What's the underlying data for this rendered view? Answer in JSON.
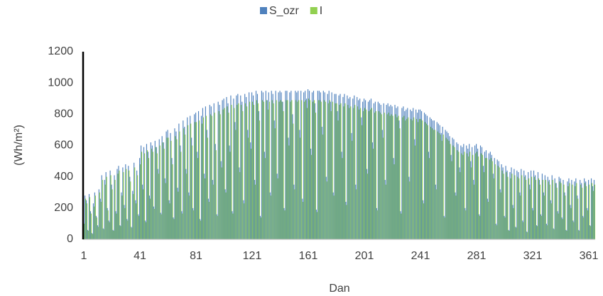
{
  "chart_data": {
    "type": "bar",
    "x_label": "Dan",
    "y_label": "(Wh/m²)",
    "ylim": [
      0,
      1200
    ],
    "yticks": [
      0,
      200,
      400,
      600,
      800,
      1000,
      1200
    ],
    "grid": false,
    "legend": "top",
    "categories": [
      1,
      null,
      null,
      null,
      null,
      null,
      null,
      null,
      null,
      null,
      null,
      null,
      null,
      null,
      null,
      null,
      null,
      null,
      null,
      null,
      null,
      null,
      null,
      null,
      null,
      null,
      null,
      null,
      null,
      null,
      null,
      null,
      null,
      null,
      null,
      null,
      null,
      null,
      null,
      null,
      41,
      null,
      null,
      null,
      null,
      null,
      null,
      null,
      null,
      null,
      null,
      null,
      null,
      null,
      null,
      null,
      null,
      null,
      null,
      null,
      null,
      null,
      null,
      null,
      null,
      null,
      null,
      null,
      null,
      null,
      null,
      null,
      null,
      null,
      null,
      null,
      null,
      null,
      null,
      null,
      81,
      null,
      null,
      null,
      null,
      null,
      null,
      null,
      null,
      null,
      null,
      null,
      null,
      null,
      null,
      null,
      null,
      null,
      null,
      null,
      null,
      null,
      null,
      null,
      null,
      null,
      null,
      null,
      null,
      null,
      null,
      null,
      null,
      null,
      null,
      null,
      null,
      null,
      null,
      null,
      121,
      null,
      null,
      null,
      null,
      null,
      null,
      null,
      null,
      null,
      null,
      null,
      null,
      null,
      null,
      null,
      null,
      null,
      null,
      null,
      null,
      null,
      null,
      null,
      null,
      null,
      null,
      null,
      null,
      null,
      null,
      null,
      null,
      null,
      null,
      null,
      null,
      null,
      null,
      null,
      161,
      null,
      null,
      null,
      null,
      null,
      null,
      null,
      null,
      null,
      null,
      null,
      null,
      null,
      null,
      null,
      null,
      null,
      null,
      null,
      null,
      null,
      null,
      null,
      null,
      null,
      null,
      null,
      null,
      null,
      null,
      null,
      null,
      null,
      null,
      null,
      null,
      null,
      null,
      null,
      201,
      null,
      null,
      null,
      null,
      null,
      null,
      null,
      null,
      null,
      null,
      null,
      null,
      null,
      null,
      null,
      null,
      null,
      null,
      null,
      null,
      null,
      null,
      null,
      null,
      null,
      null,
      null,
      null,
      null,
      null,
      null,
      null,
      null,
      null,
      null,
      null,
      null,
      null,
      null,
      241,
      null,
      null,
      null,
      null,
      null,
      null,
      null,
      null,
      null,
      null,
      null,
      null,
      null,
      null,
      null,
      null,
      null,
      null,
      null,
      null,
      null,
      null,
      null,
      null,
      null,
      null,
      null,
      null,
      null,
      null,
      null,
      null,
      null,
      null,
      null,
      null,
      null,
      null,
      null,
      281,
      null,
      null,
      null,
      null,
      null,
      null,
      null,
      null,
      null,
      null,
      null,
      null,
      null,
      null,
      null,
      null,
      null,
      null,
      null,
      null,
      null,
      null,
      null,
      null,
      null,
      null,
      null,
      null,
      null,
      null,
      null,
      null,
      null,
      null,
      null,
      null,
      null,
      null,
      null,
      321,
      null,
      null,
      null,
      null,
      null,
      null,
      null,
      null,
      null,
      null,
      null,
      null,
      null,
      null,
      null,
      null,
      null,
      null,
      null,
      null,
      null,
      null,
      null,
      null,
      null,
      null,
      null,
      null,
      null,
      null,
      null,
      null,
      null,
      null,
      null,
      null,
      null,
      null,
      null,
      361,
      null,
      null,
      null,
      null
    ],
    "series": [
      {
        "name": "S_ozr",
        "color": "#4f81bd",
        "values": [
          110,
          280,
          250,
          60,
          290,
          180,
          40,
          230,
          300,
          150,
          90,
          320,
          260,
          410,
          70,
          380,
          430,
          200,
          120,
          440,
          350,
          60,
          410,
          180,
          450,
          470,
          90,
          300,
          460,
          220,
          480,
          130,
          470,
          400,
          80,
          310,
          490,
          250,
          440,
          160,
          520,
          600,
          350,
          590,
          120,
          610,
          560,
          280,
          620,
          600,
          210,
          630,
          590,
          450,
          640,
          170,
          660,
          620,
          390,
          690,
          700,
          250,
          680,
          520,
          140,
          710,
          690,
          330,
          740,
          600,
          180,
          760,
          720,
          450,
          780,
          300,
          790,
          650,
          200,
          800,
          810,
          560,
          820,
          130,
          790,
          840,
          420,
          850,
          700,
          260,
          860,
          850,
          380,
          870,
          610,
          160,
          880,
          860,
          500,
          890,
          900,
          320,
          910,
          870,
          600,
          920,
          180,
          900,
          750,
          920,
          930,
          460,
          920,
          880,
          250,
          930,
          910,
          700,
          940,
          620,
          940,
          920,
          380,
          950,
          930,
          820,
          150,
          950,
          940,
          560,
          950,
          890,
          940,
          300,
          950,
          930,
          760,
          950,
          420,
          940,
          950,
          940,
          880,
          200,
          950,
          950,
          650,
          940,
          950,
          800,
          350,
          950,
          940,
          950,
          700,
          950,
          260,
          940,
          950,
          900,
          960,
          950,
          580,
          940,
          950,
          870,
          190,
          950,
          950,
          940,
          720,
          950,
          940,
          400,
          930,
          950,
          880,
          940,
          300,
          930,
          930,
          820,
          920,
          930,
          560,
          910,
          930,
          240,
          920,
          900,
          910,
          680,
          900,
          920,
          350,
          910,
          890,
          900,
          780,
          880,
          900,
          890,
          450,
          880,
          890,
          900,
          620,
          870,
          880,
          200,
          880,
          870,
          860,
          700,
          870,
          380,
          860,
          870,
          850,
          860,
          850,
          520,
          860,
          840,
          850,
          760,
          180,
          840,
          850,
          820,
          830,
          840,
          400,
          830,
          820,
          840,
          640,
          830,
          810,
          830,
          830,
          820,
          250,
          810,
          800,
          790,
          560,
          780,
          770,
          760,
          760,
          350,
          750,
          740,
          730,
          680,
          720,
          150,
          700,
          690,
          680,
          660,
          540,
          650,
          640,
          300,
          620,
          610,
          460,
          600,
          590,
          610,
          200,
          600,
          580,
          610,
          500,
          590,
          380,
          600,
          610,
          580,
          160,
          600,
          590,
          470,
          560,
          570,
          260,
          550,
          560,
          540,
          420,
          520,
          100,
          510,
          500,
          320,
          480,
          460,
          150,
          470,
          440,
          60,
          430,
          460,
          220,
          450,
          80,
          440,
          430,
          300,
          450,
          120,
          440,
          410,
          50,
          430,
          350,
          440,
          200,
          440,
          410,
          90,
          430,
          380,
          160,
          420,
          300,
          410,
          100,
          400,
          380,
          250,
          410,
          70,
          390,
          360,
          180,
          400,
          390,
          140,
          380,
          300,
          60,
          370,
          390,
          220,
          380,
          120,
          370,
          390,
          280,
          60,
          380,
          360,
          150,
          390,
          370,
          200,
          380,
          90,
          390,
          340,
          380
        ]
      },
      {
        "name": "I",
        "color": "#92d050",
        "values": [
          100,
          260,
          230,
          55,
          270,
          165,
          35,
          210,
          280,
          140,
          80,
          300,
          240,
          380,
          65,
          350,
          400,
          185,
          110,
          410,
          320,
          55,
          380,
          165,
          420,
          440,
          85,
          280,
          430,
          200,
          450,
          120,
          440,
          370,
          75,
          290,
          460,
          230,
          410,
          150,
          480,
          560,
          320,
          550,
          110,
          570,
          520,
          260,
          580,
          560,
          195,
          590,
          550,
          420,
          600,
          160,
          620,
          580,
          360,
          650,
          650,
          230,
          630,
          480,
          130,
          660,
          640,
          305,
          690,
          560,
          165,
          710,
          670,
          420,
          730,
          280,
          740,
          600,
          185,
          750,
          750,
          520,
          760,
          120,
          740,
          780,
          390,
          790,
          650,
          240,
          800,
          790,
          350,
          810,
          570,
          150,
          820,
          800,
          460,
          830,
          840,
          300,
          850,
          810,
          560,
          860,
          165,
          840,
          700,
          860,
          870,
          430,
          860,
          820,
          230,
          870,
          850,
          650,
          880,
          580,
          880,
          860,
          350,
          890,
          870,
          760,
          140,
          890,
          880,
          520,
          890,
          830,
          880,
          280,
          890,
          870,
          710,
          890,
          390,
          880,
          890,
          880,
          820,
          185,
          890,
          890,
          600,
          880,
          890,
          740,
          320,
          890,
          880,
          890,
          650,
          890,
          240,
          880,
          890,
          840,
          900,
          890,
          540,
          880,
          890,
          810,
          175,
          890,
          890,
          880,
          670,
          890,
          880,
          370,
          870,
          890,
          820,
          880,
          280,
          870,
          870,
          760,
          860,
          870,
          520,
          850,
          870,
          220,
          860,
          840,
          850,
          630,
          840,
          860,
          320,
          850,
          830,
          840,
          730,
          820,
          840,
          830,
          420,
          820,
          830,
          840,
          580,
          810,
          820,
          185,
          820,
          810,
          800,
          650,
          810,
          350,
          800,
          810,
          790,
          800,
          790,
          480,
          800,
          780,
          790,
          710,
          165,
          780,
          790,
          760,
          770,
          780,
          370,
          770,
          760,
          780,
          600,
          770,
          750,
          770,
          770,
          760,
          230,
          750,
          740,
          730,
          520,
          720,
          710,
          700,
          700,
          320,
          690,
          680,
          670,
          630,
          670,
          140,
          650,
          640,
          630,
          610,
          500,
          600,
          590,
          280,
          570,
          560,
          430,
          550,
          540,
          560,
          185,
          550,
          530,
          560,
          460,
          540,
          350,
          550,
          560,
          530,
          150,
          550,
          540,
          430,
          520,
          520,
          240,
          510,
          520,
          500,
          390,
          480,
          90,
          470,
          460,
          300,
          440,
          420,
          140,
          430,
          400,
          55,
          390,
          420,
          200,
          410,
          75,
          400,
          390,
          280,
          410,
          110,
          400,
          380,
          45,
          390,
          320,
          400,
          185,
          400,
          380,
          85,
          390,
          350,
          150,
          380,
          280,
          380,
          90,
          370,
          350,
          230,
          380,
          65,
          360,
          330,
          165,
          370,
          360,
          130,
          350,
          280,
          55,
          340,
          360,
          200,
          350,
          110,
          340,
          360,
          260,
          55,
          350,
          330,
          140,
          360,
          340,
          185,
          350,
          85,
          360,
          310,
          350
        ]
      }
    ]
  }
}
